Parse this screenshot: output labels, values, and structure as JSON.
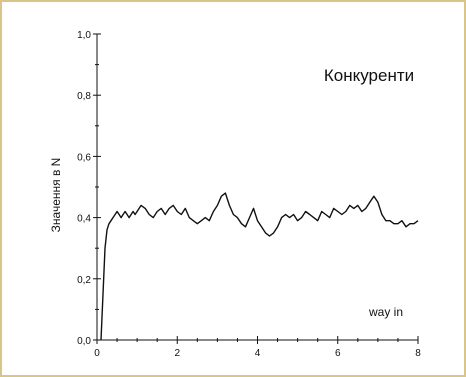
{
  "chart_data": {
    "type": "line",
    "title": "Конкуренти",
    "xlabel": "way in",
    "ylabel": "Значення в N",
    "xlim": [
      0,
      8
    ],
    "ylim": [
      0,
      1.0
    ],
    "x_ticks": [
      "0",
      "2",
      "4",
      "6",
      "8"
    ],
    "y_ticks": [
      "0,0",
      "0,2",
      "0,4",
      "0,6",
      "0,8",
      "1,0"
    ],
    "grid": false,
    "series": [
      {
        "color": "#111111",
        "x": [
          0.1,
          0.15,
          0.2,
          0.25,
          0.3,
          0.35,
          0.4,
          0.45,
          0.5,
          0.55,
          0.6,
          0.65,
          0.7,
          0.75,
          0.8,
          0.85,
          0.9,
          0.95,
          1.0,
          1.05,
          1.1,
          1.2,
          1.3,
          1.4,
          1.5,
          1.6,
          1.7,
          1.8,
          1.9,
          2.0,
          2.1,
          2.2,
          2.3,
          2.4,
          2.5,
          2.6,
          2.7,
          2.8,
          2.9,
          3.0,
          3.1,
          3.2,
          3.3,
          3.4,
          3.5,
          3.6,
          3.7,
          3.8,
          3.9,
          4.0,
          4.1,
          4.2,
          4.3,
          4.4,
          4.5,
          4.6,
          4.7,
          4.8,
          4.9,
          5.0,
          5.1,
          5.2,
          5.3,
          5.4,
          5.5,
          5.6,
          5.7,
          5.8,
          5.9,
          6.0,
          6.1,
          6.2,
          6.3,
          6.4,
          6.5,
          6.6,
          6.7,
          6.8,
          6.9,
          7.0,
          7.1,
          7.2,
          7.3,
          7.4,
          7.5,
          7.6,
          7.7,
          7.8,
          7.9,
          8.0
        ],
        "y": [
          0.0,
          0.15,
          0.3,
          0.36,
          0.38,
          0.39,
          0.4,
          0.41,
          0.42,
          0.41,
          0.4,
          0.41,
          0.42,
          0.41,
          0.4,
          0.41,
          0.42,
          0.41,
          0.42,
          0.43,
          0.44,
          0.43,
          0.41,
          0.4,
          0.42,
          0.43,
          0.41,
          0.43,
          0.44,
          0.42,
          0.41,
          0.43,
          0.4,
          0.39,
          0.38,
          0.39,
          0.4,
          0.39,
          0.42,
          0.44,
          0.47,
          0.48,
          0.44,
          0.41,
          0.4,
          0.38,
          0.37,
          0.4,
          0.43,
          0.39,
          0.37,
          0.35,
          0.34,
          0.35,
          0.37,
          0.4,
          0.41,
          0.4,
          0.41,
          0.39,
          0.4,
          0.42,
          0.41,
          0.4,
          0.39,
          0.42,
          0.41,
          0.4,
          0.43,
          0.42,
          0.41,
          0.42,
          0.44,
          0.43,
          0.44,
          0.42,
          0.43,
          0.45,
          0.47,
          0.45,
          0.41,
          0.39,
          0.39,
          0.38,
          0.38,
          0.39,
          0.37,
          0.38,
          0.38,
          0.39
        ]
      }
    ]
  }
}
